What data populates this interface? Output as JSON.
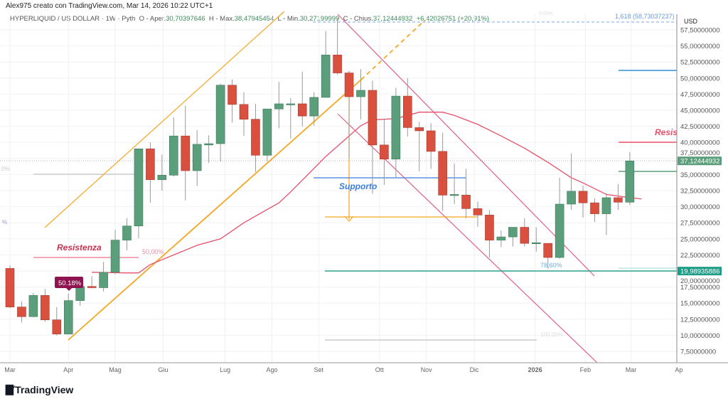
{
  "caption": "Alex975 creato con TradingView.com, Mar 14, 2026 10:22 UTC+1",
  "legend": {
    "symbol": "HYPERLIQUID / US DOLLAR · 1W · Pyth",
    "open_label": "O - Aper.",
    "open": "30,70397646",
    "high_label": "H - Max.",
    "high": "38,47945454",
    "low_label": "L - Min.",
    "low": "30,27199999",
    "close_label": "C - Chius.",
    "close": "37,12444932",
    "change": "+6,42026751 (+20,91%)"
  },
  "footer": {
    "brand": "TradingView"
  },
  "colors": {
    "up": "#5b9e7b",
    "down": "#d9503f",
    "ma": "#e8506a",
    "channel": "#f5a623",
    "descending": "#e0608a",
    "support": "#3b7ddd"
  },
  "chart_data": {
    "type": "candlestick",
    "title": "HYPERLIQUID / US DOLLAR · 1W · Pyth",
    "currency": "USD",
    "ylim": [
      5.5,
      60.5
    ],
    "y_ticks": [
      "57,50000000",
      "55,00000000",
      "52,50000000",
      "50,00000000",
      "47,50000000",
      "45,00000000",
      "42,50000000",
      "40,00000000",
      "37,50000000",
      "35,00000000",
      "32,50000000",
      "30,00000000",
      "27,50000000",
      "25,00000000",
      "22,50000000",
      "20,00000000",
      "17,50000000",
      "15,00000000",
      "12,50000000",
      "10,00000000",
      "7,50000000"
    ],
    "y_tick_values": [
      57.5,
      55,
      52.5,
      50,
      47.5,
      45,
      42.5,
      40,
      37.5,
      35,
      32.5,
      30,
      27.5,
      25,
      22.5,
      20,
      17.5,
      15,
      12.5,
      10,
      7.5
    ],
    "x_ticks": [
      {
        "label": "Mar",
        "week": 0
      },
      {
        "label": "Apr",
        "week": 5
      },
      {
        "label": "Mag",
        "week": 9
      },
      {
        "label": "Giu",
        "week": 13.1
      },
      {
        "label": "Lug",
        "week": 18.4
      },
      {
        "label": "Ago",
        "week": 22.4
      },
      {
        "label": "Set",
        "week": 26.4
      },
      {
        "label": "Ott",
        "week": 31.6
      },
      {
        "label": "Nov",
        "week": 35.6
      },
      {
        "label": "Dic",
        "week": 39.7
      },
      {
        "label": "2026",
        "week": 44.9
      },
      {
        "label": "Feb",
        "week": 49.2
      },
      {
        "label": "Mar",
        "week": 53.1
      },
      {
        "label": "Ap",
        "week": 57.2
      }
    ],
    "ohlc": [
      [
        20.4,
        20.9,
        14.2,
        14.4
      ],
      [
        14.4,
        15.3,
        12.0,
        12.9
      ],
      [
        12.9,
        16.6,
        12.8,
        16.2
      ],
      [
        16.2,
        17.2,
        12.1,
        12.4
      ],
      [
        12.4,
        14.4,
        10.0,
        10.2
      ],
      [
        10.2,
        16.5,
        10.1,
        15.4
      ],
      [
        15.4,
        17.9,
        14.6,
        17.6
      ],
      [
        17.6,
        19.2,
        17.3,
        17.4
      ],
      [
        17.4,
        21.4,
        16.8,
        19.8
      ],
      [
        19.8,
        26.4,
        19.5,
        24.8
      ],
      [
        24.8,
        28.2,
        23.2,
        27.0
      ],
      [
        27.0,
        39.0,
        25.1,
        39.0
      ],
      [
        39.0,
        40.0,
        30.6,
        34.2
      ],
      [
        34.2,
        38.1,
        32.5,
        34.9
      ],
      [
        34.9,
        43.9,
        34.7,
        41.0
      ],
      [
        41.0,
        45.7,
        31.0,
        35.6
      ],
      [
        35.6,
        41.9,
        33.2,
        39.7
      ],
      [
        39.6,
        41.1,
        36.8,
        39.8
      ],
      [
        39.8,
        49.1,
        37.0,
        48.9
      ],
      [
        48.9,
        49.8,
        43.1,
        45.9
      ],
      [
        45.9,
        47.8,
        41.0,
        43.6
      ],
      [
        43.6,
        46.0,
        35.4,
        38.0
      ],
      [
        38.0,
        45.2,
        37.0,
        45.2
      ],
      [
        45.2,
        49.4,
        42.2,
        46.0
      ],
      [
        46.0,
        46.9,
        40.6,
        46.0
      ],
      [
        46.0,
        51.0,
        42.5,
        44.1
      ],
      [
        44.1,
        47.8,
        42.6,
        47.0
      ],
      [
        47.0,
        57.3,
        47.0,
        53.6
      ],
      [
        53.6,
        59.4,
        50.5,
        50.8
      ],
      [
        50.8,
        51.1,
        37.5,
        47.1
      ],
      [
        47.1,
        51.4,
        43.6,
        48.1
      ],
      [
        48.1,
        49.6,
        32.0,
        39.6
      ],
      [
        39.6,
        43.7,
        33.4,
        37.4
      ],
      [
        37.4,
        48.5,
        34.5,
        47.2
      ],
      [
        47.2,
        50.0,
        40.9,
        42.3
      ],
      [
        42.3,
        43.2,
        35.5,
        41.8
      ],
      [
        41.8,
        43.0,
        35.9,
        38.6
      ],
      [
        38.6,
        41.5,
        29.3,
        31.8
      ],
      [
        31.8,
        36.7,
        30.4,
        31.9
      ],
      [
        31.8,
        35.9,
        28.2,
        29.7
      ],
      [
        29.7,
        30.8,
        26.9,
        28.7
      ],
      [
        28.7,
        29.5,
        22.1,
        24.8
      ],
      [
        24.8,
        26.3,
        23.7,
        25.3
      ],
      [
        25.3,
        26.8,
        23.8,
        26.8
      ],
      [
        26.8,
        28.2,
        23.8,
        24.3
      ],
      [
        24.4,
        26.8,
        23.0,
        24.4
      ],
      [
        24.3,
        24.3,
        20.4,
        22.1
      ],
      [
        22.1,
        34.5,
        21.9,
        30.4
      ],
      [
        30.4,
        38.3,
        29.5,
        32.4
      ],
      [
        32.4,
        33.3,
        28.3,
        30.6
      ],
      [
        30.6,
        31.3,
        27.6,
        28.9
      ],
      [
        28.9,
        32.1,
        25.6,
        31.4
      ],
      [
        31.4,
        33.5,
        29.5,
        30.7
      ],
      [
        30.7,
        38.48,
        30.27,
        37.12
      ]
    ],
    "moving_average": [
      [
        7,
        19.8
      ],
      [
        10,
        19.7
      ],
      [
        11,
        19.7
      ],
      [
        12,
        21.0
      ],
      [
        14,
        22.5
      ],
      [
        16,
        24.0
      ],
      [
        18,
        25.0
      ],
      [
        20,
        27.5
      ],
      [
        23,
        30.6
      ],
      [
        24,
        32.3
      ],
      [
        27,
        37.8
      ],
      [
        30,
        42.6
      ],
      [
        31,
        43.5
      ],
      [
        33,
        43.7
      ],
      [
        35,
        44.7
      ],
      [
        37,
        44.7
      ],
      [
        38,
        44.2
      ],
      [
        40,
        42.8
      ],
      [
        42,
        41.0
      ],
      [
        44,
        39.1
      ],
      [
        46,
        36.9
      ],
      [
        48,
        34.5
      ],
      [
        49,
        33.7
      ],
      [
        51,
        31.9
      ],
      [
        53,
        31.4
      ],
      [
        54,
        31.2
      ]
    ],
    "annotations": {
      "resistance_left": "Resistenza",
      "resistance_right": "Resis",
      "support": "Supporto",
      "fib_50": "50,00%",
      "badge_percent": "50.18%",
      "fib_786": "78,60%",
      "fib_1618": "1,618 (58,73037237)",
      "fib_100": "100,00%",
      "fib_0": "0,00%",
      "fib_left_partial": "0%",
      "fib_left_partial2": "%"
    },
    "price_labels": {
      "current": "37,12444932",
      "current_value": 37.12444932,
      "level": "19,98935886",
      "level_value": 19.98935886
    }
  }
}
